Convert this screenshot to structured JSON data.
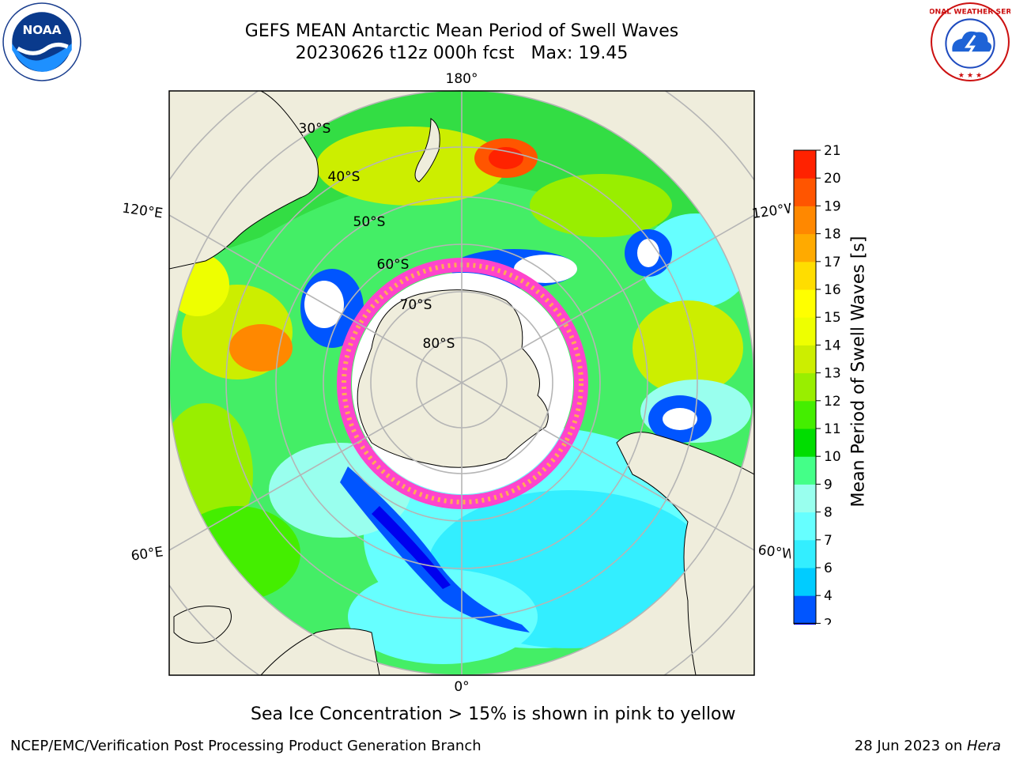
{
  "header": {
    "title_line_1": "GEFS MEAN Antarctic Mean Period of Swell Waves",
    "title_line_2": "20230626 t12z 000h fcst   Max: 19.45"
  },
  "logos": {
    "left": {
      "icon": "noaa-logo",
      "text": "NOAA"
    },
    "right": {
      "icon": "nws-logo",
      "text": "NATIONAL WEATHER SERVICE"
    }
  },
  "map": {
    "projection": "south-polar-stereographic",
    "longitude_labels": {
      "top": "180°",
      "bottom": "0°",
      "left_upper": "120°E",
      "left_lower": "60°E",
      "right_upper": "120°W",
      "right_lower": "60°W"
    },
    "latitude_labels": [
      "30°S",
      "40°S",
      "50°S",
      "60°S",
      "70°S",
      "80°S"
    ],
    "colors": {
      "land": "#efeddc",
      "ocean_border": "#000000",
      "gridline": "#b5b5b5"
    }
  },
  "colorbar": {
    "label": "Mean Period of Swell Waves [s]",
    "ticks": [
      "2",
      "4",
      "6",
      "7",
      "8",
      "9",
      "10",
      "11",
      "12",
      "13",
      "14",
      "15",
      "16",
      "17",
      "18",
      "19",
      "20",
      "21"
    ],
    "colors": [
      "#0055ff",
      "#00ccff",
      "#33eeff",
      "#66ffff",
      "#99ffee",
      "#44ff88",
      "#00dd00",
      "#44ee00",
      "#99ee00",
      "#ccee00",
      "#eeff00",
      "#ffff00",
      "#ffdd00",
      "#ffaa00",
      "#ff8800",
      "#ff5500",
      "#ff2200"
    ],
    "extend_below_color": "#0000ee"
  },
  "notes": {
    "sea_ice": "Sea Ice Concentration > 15% is shown in pink to yellow"
  },
  "footer": {
    "left": "NCEP/EMC/Verification Post Processing Product Generation Branch",
    "right_prefix": "28 Jun 2023 on ",
    "right_machine": "Hera"
  }
}
